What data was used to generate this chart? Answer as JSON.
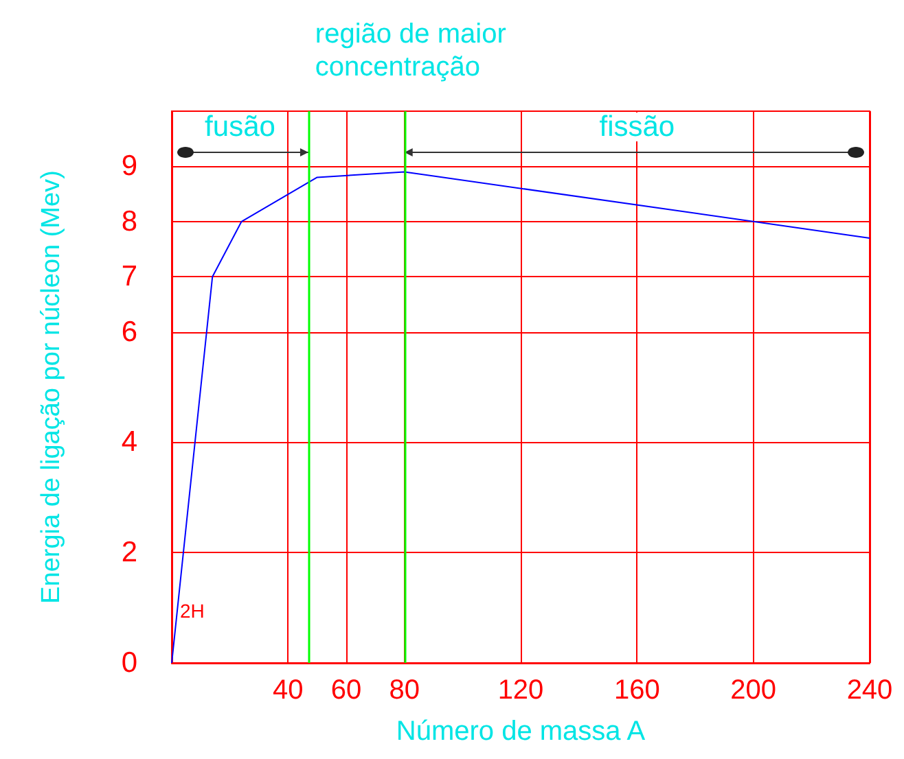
{
  "chart_data": {
    "type": "line",
    "xlabel": "Número de massa A",
    "ylabel": "Energia de ligação por núcleon (Mev)",
    "x": [
      0,
      14,
      24,
      50,
      80,
      240
    ],
    "series": [
      {
        "color": "#0000ff",
        "values": [
          0,
          7,
          8,
          8.8,
          8.9,
          7.7
        ]
      }
    ],
    "xlim": [
      0,
      240
    ],
    "xticks": [
      40,
      60,
      80,
      120,
      160,
      200,
      240
    ],
    "ylim": [
      0,
      10
    ],
    "yticks": [
      0,
      2,
      4,
      6,
      7,
      8,
      9
    ],
    "grid": true,
    "marker": "none",
    "ref_lines": [
      {
        "axis": "x",
        "value": 47,
        "color": "#00ff00"
      },
      {
        "axis": "x",
        "value": 80,
        "color": "#00ff00"
      }
    ],
    "annotations": [
      "fusão",
      "fissão",
      "2H",
      "região de maior concentração"
    ]
  }
}
